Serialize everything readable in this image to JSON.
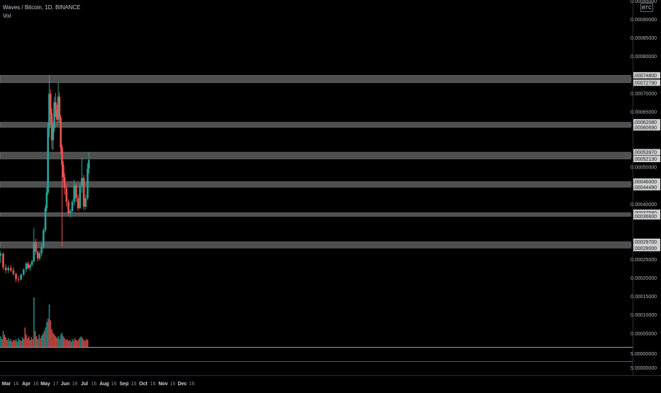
{
  "header": {
    "title": "Waves / Bitcoin, 1D, BINANCE",
    "volume_label": "Vol",
    "currency_badge": "BTC"
  },
  "colors": {
    "background": "#000000",
    "up": "#26a69a",
    "down": "#ef5350",
    "zone_fill": "#8f8f8f",
    "axis_text": "#b2b5be",
    "separator": "#9aa0a6"
  },
  "price_axis": {
    "ticks": [
      "0.00095000",
      "0.00090000",
      "0.00085000",
      "0.00080000",
      "0.00070000",
      "0.00065000",
      "0.00050000",
      "0.00040000",
      "0.00025000",
      "0.00020000",
      "0.00015000",
      "0.00010000",
      "0.00005000"
    ],
    "zone_labels": [
      "0.00074800",
      "0.00072790",
      "0.00062080",
      "0.00060690",
      "0.00053970",
      "0.00052130",
      "0.00046000",
      "0.00044490",
      "0.00037580",
      "0.00036600",
      "0.00029700",
      "0.00028000"
    ]
  },
  "volume_axis": {
    "ticks": [
      "5.00000000"
    ]
  },
  "lower_pane_axis": {
    "ticks": [
      "5.00000000"
    ]
  },
  "time_axis": {
    "ticks": [
      "Mar",
      "16",
      "Apr",
      "16",
      "May",
      "17",
      "Jun",
      "16",
      "Jul",
      "16",
      "Aug",
      "16",
      "Sep",
      "16",
      "Oct",
      "16",
      "Nov",
      "16",
      "Dec",
      "16"
    ]
  },
  "chart_data": {
    "type": "candlestick",
    "title": "Waves / Bitcoin, 1D, BINANCE",
    "series_name": "Vol",
    "y_scale": "linear",
    "ylim": [
      0.0,
      0.00096
    ],
    "x_range": [
      "2019-02-19",
      "2020-01-01"
    ],
    "grid": false,
    "zones": [
      {
        "from": 0.0007279,
        "to": 0.000748
      },
      {
        "from": 0.0006069,
        "to": 0.0006208
      },
      {
        "from": 0.0005213,
        "to": 0.0005397
      },
      {
        "from": 0.0004449,
        "to": 0.00046
      },
      {
        "from": 0.000366,
        "to": 0.0003758
      },
      {
        "from": 0.00028,
        "to": 0.000297
      }
    ],
    "ohlc": [
      [
        "2019-02-20",
        0.00026,
        0.000272,
        0.00024,
        0.000265
      ],
      [
        "2019-02-24",
        0.000265,
        0.000268,
        0.00022,
        0.000228
      ],
      [
        "2019-02-28",
        0.000228,
        0.000236,
        0.000212,
        0.00022
      ],
      [
        "2019-03-04",
        0.00022,
        0.000232,
        0.000212,
        0.000226
      ],
      [
        "2019-03-08",
        0.000226,
        0.000234,
        0.000215,
        0.00022
      ],
      [
        "2019-03-12",
        0.00022,
        0.000228,
        0.000205,
        0.00021
      ],
      [
        "2019-03-16",
        0.00021,
        0.000214,
        0.000188,
        0.000196
      ],
      [
        "2019-03-20",
        0.000196,
        0.000205,
        0.000188,
        0.000195
      ],
      [
        "2019-03-24",
        0.000195,
        0.000212,
        0.000192,
        0.000208
      ],
      [
        "2019-03-28",
        0.000208,
        0.000225,
        0.000204,
        0.000222
      ],
      [
        "2019-04-01",
        0.000222,
        0.000242,
        0.000214,
        0.000238
      ],
      [
        "2019-04-04",
        0.000238,
        0.000244,
        0.000222,
        0.000226
      ],
      [
        "2019-04-07",
        0.000226,
        0.000238,
        0.000218,
        0.000234
      ],
      [
        "2019-04-10",
        0.000234,
        0.000248,
        0.00023,
        0.000244
      ],
      [
        "2019-04-13",
        0.000244,
        0.000335,
        0.00024,
        0.000295
      ],
      [
        "2019-04-16",
        0.000295,
        0.000305,
        0.000262,
        0.00027
      ],
      [
        "2019-04-19",
        0.00027,
        0.000276,
        0.000244,
        0.000252
      ],
      [
        "2019-04-22",
        0.000252,
        0.000272,
        0.000246,
        0.000266
      ],
      [
        "2019-04-25",
        0.000266,
        0.000292,
        0.000258,
        0.000282
      ],
      [
        "2019-04-28",
        0.000282,
        0.000335,
        0.000278,
        0.000328
      ],
      [
        "2019-05-01",
        0.000328,
        0.000395,
        0.000322,
        0.000388
      ],
      [
        "2019-05-03",
        0.000388,
        0.000445,
        0.00038,
        0.00043
      ],
      [
        "2019-05-05",
        0.00043,
        0.00062,
        0.000425,
        0.000605
      ],
      [
        "2019-05-07",
        0.000605,
        0.000748,
        0.00058,
        0.000698
      ],
      [
        "2019-05-09",
        0.000698,
        0.00071,
        0.000615,
        0.000645
      ],
      [
        "2019-05-11",
        0.000645,
        0.000658,
        0.000548,
        0.000572
      ],
      [
        "2019-05-13",
        0.000572,
        0.00062,
        0.000545,
        0.000605
      ],
      [
        "2019-05-15",
        0.000605,
        0.00069,
        0.000595,
        0.000675
      ],
      [
        "2019-05-17",
        0.000675,
        0.0007,
        0.000635,
        0.000655
      ],
      [
        "2019-05-19",
        0.000655,
        0.000668,
        0.000612,
        0.000628
      ],
      [
        "2019-05-21",
        0.000628,
        0.000728,
        0.00062,
        0.00069
      ],
      [
        "2019-05-23",
        0.00069,
        0.000702,
        0.000618,
        0.000632
      ],
      [
        "2019-05-25",
        0.000632,
        0.00064,
        0.000535,
        0.000552
      ],
      [
        "2019-05-27",
        0.000552,
        0.00056,
        0.000285,
        0.000505
      ],
      [
        "2019-05-29",
        0.000505,
        0.000515,
        0.00046,
        0.000472
      ],
      [
        "2019-05-31",
        0.000472,
        0.000482,
        0.000425,
        0.000442
      ],
      [
        "2019-06-03",
        0.000442,
        0.000452,
        0.000392,
        0.000405
      ],
      [
        "2019-06-06",
        0.000405,
        0.000412,
        0.000368,
        0.000375
      ],
      [
        "2019-06-09",
        0.000375,
        0.000386,
        0.000362,
        0.00038
      ],
      [
        "2019-06-12",
        0.00038,
        0.000412,
        0.000375,
        0.000405
      ],
      [
        "2019-06-15",
        0.000405,
        0.000465,
        0.000395,
        0.00045
      ],
      [
        "2019-06-18",
        0.00045,
        0.000455,
        0.000405,
        0.000415
      ],
      [
        "2019-06-21",
        0.000415,
        0.000425,
        0.00038,
        0.000388
      ],
      [
        "2019-06-24",
        0.000388,
        0.000455,
        0.000385,
        0.000448
      ],
      [
        "2019-06-27",
        0.000448,
        0.000525,
        0.00043,
        0.00047
      ],
      [
        "2019-06-30",
        0.00047,
        0.000478,
        0.000382,
        0.000392
      ],
      [
        "2019-07-03",
        0.000392,
        0.000425,
        0.000385,
        0.000415
      ],
      [
        "2019-07-06",
        0.000415,
        0.00051,
        0.00041,
        0.000495
      ],
      [
        "2019-07-08",
        0.000495,
        0.00054,
        0.000482,
        0.000518
      ]
    ],
    "volume": [
      [
        "2019-02-20",
        12
      ],
      [
        "2019-02-22",
        9
      ],
      [
        "2019-02-24",
        18
      ],
      [
        "2019-02-26",
        14
      ],
      [
        "2019-02-28",
        11
      ],
      [
        "2019-03-02",
        8
      ],
      [
        "2019-03-04",
        10
      ],
      [
        "2019-03-06",
        7
      ],
      [
        "2019-03-08",
        9
      ],
      [
        "2019-03-10",
        6
      ],
      [
        "2019-03-12",
        8
      ],
      [
        "2019-03-14",
        7
      ],
      [
        "2019-03-16",
        9
      ],
      [
        "2019-03-18",
        6
      ],
      [
        "2019-03-20",
        10
      ],
      [
        "2019-03-22",
        8
      ],
      [
        "2019-03-24",
        7
      ],
      [
        "2019-03-26",
        11
      ],
      [
        "2019-03-28",
        9
      ],
      [
        "2019-03-30",
        22
      ],
      [
        "2019-04-01",
        14
      ],
      [
        "2019-04-03",
        10
      ],
      [
        "2019-04-05",
        12
      ],
      [
        "2019-04-07",
        8
      ],
      [
        "2019-04-09",
        11
      ],
      [
        "2019-04-11",
        9
      ],
      [
        "2019-04-13",
        56
      ],
      [
        "2019-04-15",
        18
      ],
      [
        "2019-04-17",
        12
      ],
      [
        "2019-04-19",
        9
      ],
      [
        "2019-04-21",
        14
      ],
      [
        "2019-04-23",
        10
      ],
      [
        "2019-04-25",
        13
      ],
      [
        "2019-04-27",
        15
      ],
      [
        "2019-04-29",
        18
      ],
      [
        "2019-05-01",
        22
      ],
      [
        "2019-05-03",
        28
      ],
      [
        "2019-05-05",
        32
      ],
      [
        "2019-05-07",
        48
      ],
      [
        "2019-05-09",
        30
      ],
      [
        "2019-05-11",
        20
      ],
      [
        "2019-05-13",
        16
      ],
      [
        "2019-05-15",
        14
      ],
      [
        "2019-05-17",
        12
      ],
      [
        "2019-05-19",
        10
      ],
      [
        "2019-05-21",
        12
      ],
      [
        "2019-05-23",
        9
      ],
      [
        "2019-05-25",
        14
      ],
      [
        "2019-05-27",
        16
      ],
      [
        "2019-05-29",
        12
      ],
      [
        "2019-05-31",
        10
      ],
      [
        "2019-06-02",
        8
      ],
      [
        "2019-06-04",
        9
      ],
      [
        "2019-06-06",
        7
      ],
      [
        "2019-06-08",
        8
      ],
      [
        "2019-06-10",
        6
      ],
      [
        "2019-06-12",
        9
      ],
      [
        "2019-06-14",
        7
      ],
      [
        "2019-06-16",
        10
      ],
      [
        "2019-06-18",
        8
      ],
      [
        "2019-06-20",
        7
      ],
      [
        "2019-06-22",
        9
      ],
      [
        "2019-06-24",
        11
      ],
      [
        "2019-06-26",
        12
      ],
      [
        "2019-06-28",
        10
      ],
      [
        "2019-06-30",
        8
      ],
      [
        "2019-07-02",
        7
      ],
      [
        "2019-07-04",
        9
      ],
      [
        "2019-07-06",
        8
      ]
    ]
  }
}
